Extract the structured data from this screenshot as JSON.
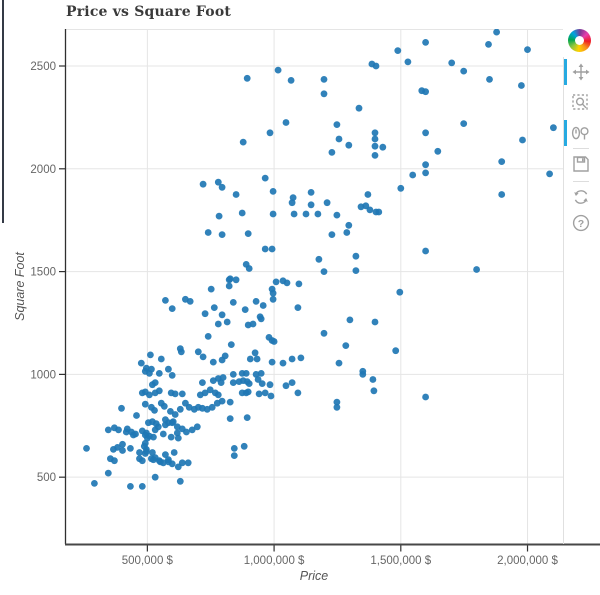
{
  "title": "Price vs Square Foot",
  "chart_data": {
    "type": "scatter",
    "title": "Price vs Square Foot",
    "xlabel": "Price",
    "ylabel": "Square Foot",
    "x_range": [
      175000,
      2140000
    ],
    "y_range": [
      175,
      2680
    ],
    "grid": true,
    "x_ticks": [
      {
        "value": 500000,
        "label": "500,000 $"
      },
      {
        "value": 1000000,
        "label": "1,000,000 $"
      },
      {
        "value": 1500000,
        "label": "1,500,000 $"
      },
      {
        "value": 2000000,
        "label": "2,000,000 $"
      }
    ],
    "y_ticks": [
      {
        "value": 500,
        "label": "500"
      },
      {
        "value": 1000,
        "label": "1000"
      },
      {
        "value": 1500,
        "label": "1500"
      },
      {
        "value": 2000,
        "label": "2000"
      },
      {
        "value": 2500,
        "label": "2500"
      }
    ],
    "marker_color": "#1f77b4",
    "marker_radius": 3.4,
    "points": [
      [
        720000,
        1925
      ],
      [
        780000,
        1935
      ],
      [
        795000,
        1910
      ],
      [
        894000,
        2440
      ],
      [
        1016000,
        2480
      ],
      [
        1067000,
        2430
      ],
      [
        1197000,
        2435
      ],
      [
        1197000,
        2365
      ],
      [
        1335000,
        2295
      ],
      [
        1386000,
        2510
      ],
      [
        1402000,
        2500
      ],
      [
        1047000,
        2225
      ],
      [
        984000,
        2175
      ],
      [
        878000,
        2130
      ],
      [
        1248000,
        2215
      ],
      [
        1256000,
        2145
      ],
      [
        1295000,
        2115
      ],
      [
        1228000,
        2080
      ],
      [
        1398000,
        2175
      ],
      [
        1398000,
        2145
      ],
      [
        1398000,
        2110
      ],
      [
        1429000,
        2105
      ],
      [
        1398000,
        2065
      ],
      [
        965000,
        1955
      ],
      [
        996000,
        1890
      ],
      [
        850000,
        1875
      ],
      [
        1075000,
        1860
      ],
      [
        1146000,
        1885
      ],
      [
        1370000,
        1875
      ],
      [
        1878000,
        2665
      ],
      [
        1598000,
        2615
      ],
      [
        1846000,
        2605
      ],
      [
        2000000,
        2580
      ],
      [
        1488000,
        2575
      ],
      [
        1528000,
        2520
      ],
      [
        1701000,
        2515
      ],
      [
        1748000,
        2475
      ],
      [
        1850000,
        2435
      ],
      [
        1976000,
        2405
      ],
      [
        1583000,
        2380
      ],
      [
        1598000,
        2375
      ],
      [
        1748000,
        2220
      ],
      [
        2102000,
        2200
      ],
      [
        1598000,
        2175
      ],
      [
        1980000,
        2140
      ],
      [
        1646000,
        2085
      ],
      [
        1898000,
        2035
      ],
      [
        1598000,
        2020
      ],
      [
        1547000,
        1970
      ],
      [
        1598000,
        1980
      ],
      [
        2087000,
        1975
      ],
      [
        1500000,
        1905
      ],
      [
        1898000,
        1875
      ],
      [
        783000,
        1770
      ],
      [
        740000,
        1690
      ],
      [
        795000,
        1680
      ],
      [
        823000,
        1460
      ],
      [
        823000,
        1430
      ],
      [
        752000,
        1415
      ],
      [
        571000,
        1360
      ],
      [
        650000,
        1365
      ],
      [
        669000,
        1355
      ],
      [
        598000,
        1320
      ],
      [
        728000,
        1295
      ],
      [
        764000,
        1325
      ],
      [
        795000,
        1290
      ],
      [
        780000,
        1245
      ],
      [
        815000,
        1255
      ],
      [
        740000,
        1185
      ],
      [
        630000,
        1125
      ],
      [
        634000,
        1110
      ],
      [
        701000,
        1110
      ],
      [
        720000,
        1085
      ],
      [
        807000,
        1090
      ],
      [
        795000,
        1070
      ],
      [
        512000,
        1095
      ],
      [
        476000,
        1055
      ],
      [
        496000,
        1030
      ],
      [
        516000,
        1025
      ],
      [
        555000,
        1075
      ],
      [
        583000,
        1025
      ],
      [
        760000,
        1060
      ],
      [
        874000,
        1785
      ],
      [
        996000,
        1780
      ],
      [
        1071000,
        1835
      ],
      [
        1079000,
        1780
      ],
      [
        1126000,
        1780
      ],
      [
        1146000,
        1825
      ],
      [
        1173000,
        1780
      ],
      [
        1209000,
        1835
      ],
      [
        1248000,
        1775
      ],
      [
        1295000,
        1725
      ],
      [
        1343000,
        1815
      ],
      [
        1362000,
        1820
      ],
      [
        1378000,
        1800
      ],
      [
        1402000,
        1790
      ],
      [
        1413000,
        1790
      ],
      [
        898000,
        1685
      ],
      [
        1228000,
        1680
      ],
      [
        1287000,
        1690
      ],
      [
        965000,
        1610
      ],
      [
        992000,
        1610
      ],
      [
        1177000,
        1560
      ],
      [
        1323000,
        1575
      ],
      [
        890000,
        1535
      ],
      [
        902000,
        1515
      ],
      [
        1197000,
        1500
      ],
      [
        1323000,
        1505
      ],
      [
        827000,
        1465
      ],
      [
        850000,
        1460
      ],
      [
        1008000,
        1450
      ],
      [
        1035000,
        1455
      ],
      [
        1051000,
        1445
      ],
      [
        1098000,
        1440
      ],
      [
        992000,
        1415
      ],
      [
        996000,
        1395
      ],
      [
        839000,
        1350
      ],
      [
        929000,
        1355
      ],
      [
        957000,
        1335
      ],
      [
        996000,
        1365
      ],
      [
        886000,
        1315
      ],
      [
        1094000,
        1325
      ],
      [
        945000,
        1280
      ],
      [
        949000,
        1270
      ],
      [
        898000,
        1240
      ],
      [
        917000,
        1245
      ],
      [
        1299000,
        1265
      ],
      [
        1398000,
        1255
      ],
      [
        1197000,
        1200
      ],
      [
        980000,
        1180
      ],
      [
        992000,
        1165
      ],
      [
        1000000,
        1160
      ],
      [
        1283000,
        1140
      ],
      [
        831000,
        1145
      ],
      [
        925000,
        1105
      ],
      [
        906000,
        1075
      ],
      [
        933000,
        1075
      ],
      [
        992000,
        1060
      ],
      [
        1035000,
        1055
      ],
      [
        1071000,
        1075
      ],
      [
        1106000,
        1080
      ],
      [
        1256000,
        1055
      ],
      [
        1480000,
        1115
      ],
      [
        1598000,
        1600
      ],
      [
        1799000,
        1510
      ],
      [
        1496000,
        1400
      ],
      [
        492000,
        1015
      ],
      [
        508000,
        1005
      ],
      [
        547000,
        1005
      ],
      [
        598000,
        995
      ],
      [
        717000,
        960
      ],
      [
        760000,
        970
      ],
      [
        780000,
        980
      ],
      [
        791000,
        960
      ],
      [
        799000,
        985
      ],
      [
        520000,
        950
      ],
      [
        531000,
        960
      ],
      [
        547000,
        920
      ],
      [
        492000,
        915
      ],
      [
        480000,
        910
      ],
      [
        508000,
        900
      ],
      [
        531000,
        910
      ],
      [
        594000,
        910
      ],
      [
        610000,
        905
      ],
      [
        638000,
        905
      ],
      [
        709000,
        900
      ],
      [
        728000,
        910
      ],
      [
        748000,
        925
      ],
      [
        768000,
        910
      ],
      [
        780000,
        900
      ],
      [
        398000,
        835
      ],
      [
        457000,
        800
      ],
      [
        492000,
        855
      ],
      [
        516000,
        840
      ],
      [
        528000,
        825
      ],
      [
        555000,
        860
      ],
      [
        567000,
        845
      ],
      [
        591000,
        820
      ],
      [
        610000,
        805
      ],
      [
        630000,
        830
      ],
      [
        650000,
        860
      ],
      [
        665000,
        840
      ],
      [
        685000,
        830
      ],
      [
        701000,
        840
      ],
      [
        717000,
        835
      ],
      [
        736000,
        830
      ],
      [
        756000,
        840
      ],
      [
        776000,
        860
      ],
      [
        795000,
        870
      ],
      [
        346000,
        730
      ],
      [
        370000,
        740
      ],
      [
        386000,
        730
      ],
      [
        421000,
        735
      ],
      [
        437000,
        720
      ],
      [
        453000,
        710
      ],
      [
        480000,
        725
      ],
      [
        492000,
        705
      ],
      [
        508000,
        700
      ],
      [
        531000,
        730
      ],
      [
        543000,
        745
      ],
      [
        571000,
        755
      ],
      [
        583000,
        765
      ],
      [
        598000,
        765
      ],
      [
        618000,
        745
      ],
      [
        638000,
        735
      ],
      [
        654000,
        720
      ],
      [
        677000,
        730
      ],
      [
        697000,
        745
      ],
      [
        492000,
        665
      ],
      [
        488000,
        650
      ],
      [
        496000,
        635
      ],
      [
        260000,
        640
      ],
      [
        366000,
        635
      ],
      [
        382000,
        645
      ],
      [
        402000,
        630
      ],
      [
        492000,
        615
      ],
      [
        520000,
        620
      ],
      [
        354000,
        590
      ],
      [
        370000,
        580
      ],
      [
        469000,
        590
      ],
      [
        480000,
        580
      ],
      [
        516000,
        590
      ],
      [
        531000,
        595
      ],
      [
        547000,
        580
      ],
      [
        563000,
        570
      ],
      [
        583000,
        585
      ],
      [
        598000,
        565
      ],
      [
        622000,
        550
      ],
      [
        638000,
        570
      ],
      [
        661000,
        570
      ],
      [
        346000,
        520
      ],
      [
        433000,
        455
      ],
      [
        480000,
        455
      ],
      [
        291000,
        470
      ],
      [
        531000,
        500
      ],
      [
        630000,
        480
      ],
      [
        504000,
        765
      ],
      [
        520000,
        770
      ],
      [
        535000,
        760
      ],
      [
        571000,
        780
      ],
      [
        602000,
        770
      ],
      [
        417000,
        720
      ],
      [
        445000,
        705
      ],
      [
        496000,
        715
      ],
      [
        500000,
        690
      ],
      [
        524000,
        695
      ],
      [
        563000,
        710
      ],
      [
        594000,
        695
      ],
      [
        618000,
        715
      ],
      [
        622000,
        690
      ],
      [
        402000,
        660
      ],
      [
        433000,
        640
      ],
      [
        469000,
        620
      ],
      [
        496000,
        625
      ],
      [
        551000,
        575
      ],
      [
        606000,
        620
      ],
      [
        524000,
        585
      ],
      [
        571000,
        610
      ],
      [
        583000,
        575
      ],
      [
        839000,
        1000
      ],
      [
        874000,
        1005
      ],
      [
        890000,
        1005
      ],
      [
        929000,
        1000
      ],
      [
        949000,
        1005
      ],
      [
        839000,
        960
      ],
      [
        862000,
        965
      ],
      [
        878000,
        970
      ],
      [
        894000,
        965
      ],
      [
        902000,
        955
      ],
      [
        937000,
        975
      ],
      [
        953000,
        955
      ],
      [
        984000,
        950
      ],
      [
        874000,
        910
      ],
      [
        890000,
        910
      ],
      [
        898000,
        915
      ],
      [
        941000,
        905
      ],
      [
        965000,
        910
      ],
      [
        988000,
        895
      ],
      [
        1047000,
        945
      ],
      [
        1071000,
        960
      ],
      [
        1094000,
        910
      ],
      [
        894000,
        790
      ],
      [
        1248000,
        865
      ],
      [
        1248000,
        840
      ],
      [
        1350000,
        1015
      ],
      [
        1350000,
        1000
      ],
      [
        1390000,
        975
      ],
      [
        1394000,
        920
      ],
      [
        827000,
        865
      ],
      [
        827000,
        785
      ],
      [
        843000,
        640
      ],
      [
        882000,
        650
      ],
      [
        843000,
        605
      ],
      [
        1598000,
        890
      ]
    ]
  },
  "toolbar": {
    "logo_name": "bokeh-logo",
    "active_indicator_color": "#26aae1",
    "icon_color": "#a0a0a0",
    "tools": [
      {
        "id": "pan",
        "label": "Pan",
        "active": true
      },
      {
        "id": "box-zoom",
        "label": "Box Zoom",
        "active": false
      },
      {
        "id": "wheel-zoom",
        "label": "Wheel Zoom",
        "active": true
      },
      {
        "id": "save",
        "label": "Save",
        "active": false
      },
      {
        "id": "reset",
        "label": "Reset",
        "active": false
      },
      {
        "id": "help",
        "label": "Help",
        "active": false
      }
    ]
  },
  "colors": {
    "grid": "#e5e5e5",
    "axis_line": "#303030",
    "tick_label": "#666666",
    "title": "#3a3a3a",
    "left_edge_bar": "#343a46",
    "toolbar_divider": "#e0e0e0"
  }
}
